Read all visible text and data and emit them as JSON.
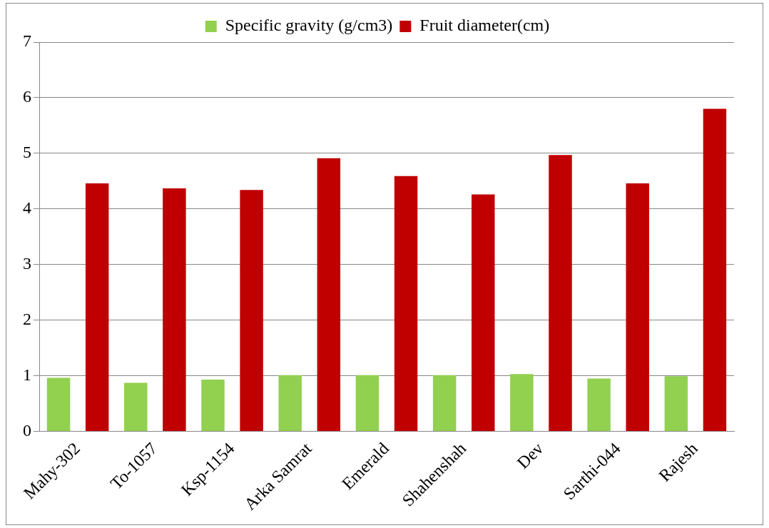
{
  "chart_data": {
    "type": "bar",
    "categories": [
      "Mahy-302",
      "To-1057",
      "Ksp-1154",
      "Arka Samrat",
      "Emerald",
      "Shahenshah",
      "Dev",
      "Sarthi-044",
      "Rajesh"
    ],
    "series": [
      {
        "name": "Specific gravity (g/cm3)",
        "color": "#92d050",
        "values": [
          0.96,
          0.87,
          0.93,
          1.01,
          1.01,
          1.01,
          1.03,
          0.95,
          0.99
        ]
      },
      {
        "name": "Fruit diameter(cm)",
        "color": "#c00000",
        "values": [
          4.46,
          4.37,
          4.34,
          4.91,
          4.59,
          4.26,
          4.97,
          4.46,
          5.8
        ]
      }
    ],
    "ylim": [
      0,
      7
    ],
    "yticks": [
      0,
      1,
      2,
      3,
      4,
      5,
      6,
      7
    ],
    "grid": "y",
    "legend": "top"
  }
}
